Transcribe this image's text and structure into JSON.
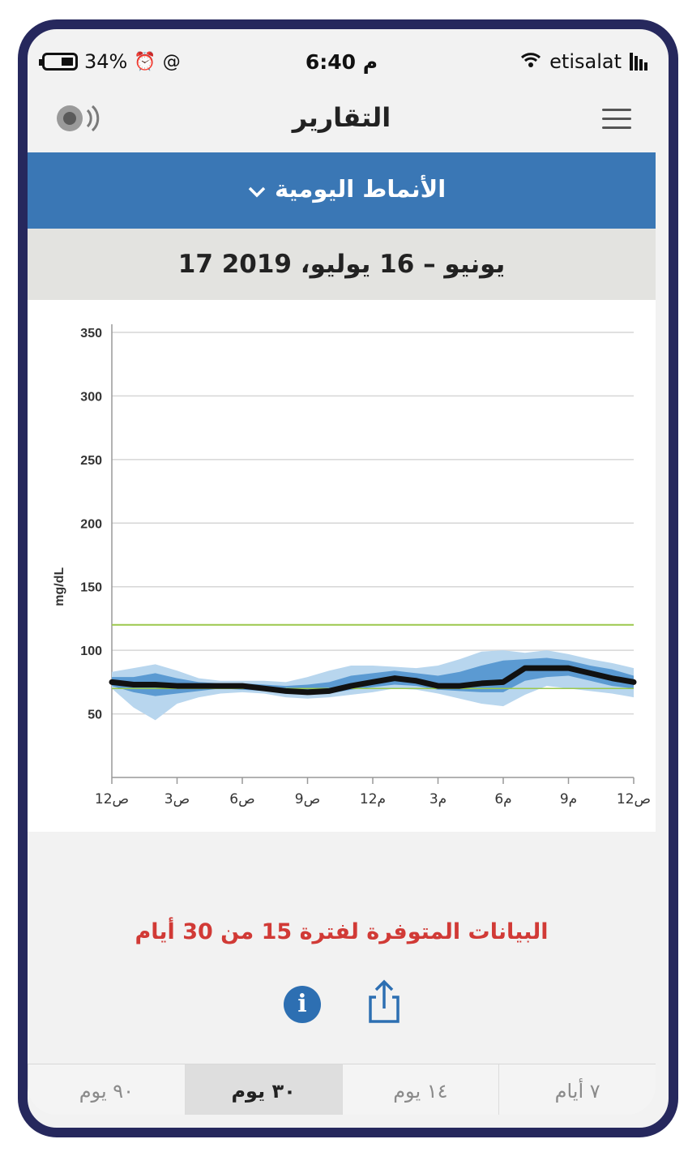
{
  "status_bar": {
    "battery": "34%",
    "time": "6:40 م",
    "carrier": "etisalat"
  },
  "header": {
    "title": "التقارير"
  },
  "report_selector": {
    "label": "الأنماط اليومية"
  },
  "date_range": "17 يونيو – 16 يوليو، 2019",
  "chart_data": {
    "type": "area",
    "ylabel": "mg/dL",
    "xlabel": "",
    "ylim": [
      0,
      350
    ],
    "yticks": [
      50,
      100,
      150,
      200,
      250,
      300,
      350
    ],
    "xticks": [
      "12ص",
      "3ص",
      "6ص",
      "9ص",
      "12م",
      "3م",
      "6م",
      "9م",
      "12ص"
    ],
    "target_range": [
      70,
      120
    ],
    "colors": {
      "median": "#111111",
      "band_25_75": "#5b9ad2",
      "band_10_90": "#b8d6ee",
      "target": "#9bc84c",
      "grid": "#d6d6d6"
    },
    "x_hours": [
      0,
      1,
      2,
      3,
      4,
      5,
      6,
      7,
      8,
      9,
      10,
      11,
      12,
      13,
      14,
      15,
      16,
      17,
      18,
      19,
      20,
      21,
      22,
      23,
      24
    ],
    "series": [
      {
        "name": "median",
        "values": [
          75,
          73,
          73,
          72,
          72,
          72,
          72,
          70,
          68,
          67,
          68,
          72,
          75,
          78,
          76,
          72,
          72,
          74,
          75,
          86,
          86,
          86,
          82,
          78,
          75
        ]
      },
      {
        "name": "p25",
        "values": [
          72,
          67,
          64,
          66,
          68,
          70,
          69,
          68,
          66,
          65,
          66,
          69,
          71,
          73,
          72,
          69,
          68,
          67,
          67,
          76,
          79,
          80,
          76,
          72,
          70
        ]
      },
      {
        "name": "p75",
        "values": [
          79,
          79,
          82,
          78,
          75,
          74,
          74,
          73,
          72,
          73,
          75,
          80,
          82,
          84,
          82,
          80,
          83,
          88,
          92,
          93,
          94,
          92,
          88,
          85,
          80
        ]
      },
      {
        "name": "p10",
        "values": [
          70,
          55,
          45,
          58,
          63,
          66,
          67,
          66,
          63,
          62,
          63,
          65,
          67,
          70,
          69,
          66,
          62,
          58,
          56,
          65,
          72,
          70,
          68,
          66,
          63
        ]
      },
      {
        "name": "p90",
        "values": [
          83,
          86,
          89,
          84,
          78,
          76,
          76,
          76,
          75,
          79,
          84,
          88,
          88,
          87,
          86,
          88,
          93,
          99,
          100,
          98,
          100,
          97,
          93,
          90,
          86
        ]
      }
    ]
  },
  "notice": "البيانات المتوفرة لفترة 15 من 30 أيام",
  "tabs": [
    "٧ أيام",
    "١٤ يوم",
    "٣٠ يوم",
    "٩٠ يوم"
  ],
  "active_tab": "٣٠ يوم"
}
